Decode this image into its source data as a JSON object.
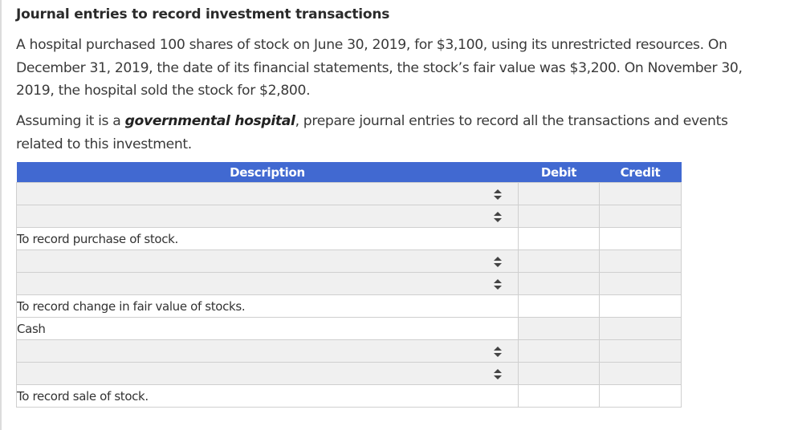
{
  "title": "Journal entries to record investment transactions",
  "problem": {
    "paragraph1": "A hospital purchased 100 shares of stock on June 30, 2019, for $3,100, using its unrestricted resources. On December 31, 2019, the date of its financial statements, the stock’s fair value was $3,200. On November 30, 2019, the hospital sold the stock for $2,800.",
    "paragraph2_prefix": "Assuming it is a ",
    "paragraph2_emphasis": "governmental hospital",
    "paragraph2_suffix": ", prepare journal entries to record all the transactions and events related to this investment."
  },
  "table": {
    "headers": {
      "description": "Description",
      "debit": "Debit",
      "credit": "Credit"
    },
    "colors": {
      "header_bg": "#4169d1",
      "header_text": "#ffffff",
      "input_bg": "#f0f0f0",
      "memo_bg": "#ffffff"
    },
    "rows": [
      {
        "type": "select",
        "description": "",
        "debit": "",
        "credit": ""
      },
      {
        "type": "select",
        "description": "",
        "debit": "",
        "credit": ""
      },
      {
        "type": "memo",
        "description": "To record purchase of stock.",
        "debit": "",
        "credit": ""
      },
      {
        "type": "select",
        "description": "",
        "debit": "",
        "credit": ""
      },
      {
        "type": "select",
        "description": "",
        "debit": "",
        "credit": ""
      },
      {
        "type": "memo",
        "description": "To record change in fair value of stocks.",
        "debit": "",
        "credit": ""
      },
      {
        "type": "fixed",
        "description": "Cash",
        "debit": "",
        "credit": ""
      },
      {
        "type": "select",
        "description": "",
        "debit": "",
        "credit": ""
      },
      {
        "type": "select",
        "description": "",
        "debit": "",
        "credit": ""
      },
      {
        "type": "memo",
        "description": "To record sale of stock.",
        "debit": "",
        "credit": ""
      }
    ]
  }
}
